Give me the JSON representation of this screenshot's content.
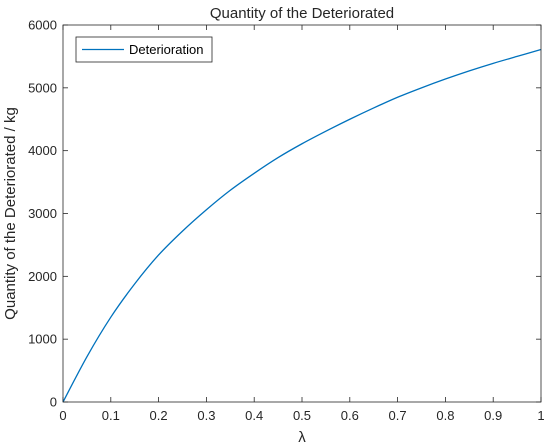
{
  "chart_data": {
    "type": "line",
    "title": "Quantity of the Deteriorated",
    "xlabel": "λ",
    "ylabel": "Quantity of the Deteriorated / kg",
    "xlim": [
      0,
      1
    ],
    "ylim": [
      0,
      6000
    ],
    "xticks": [
      0,
      0.1,
      0.2,
      0.3,
      0.4,
      0.5,
      0.6,
      0.7,
      0.8,
      0.9,
      1
    ],
    "xtick_labels": [
      "0",
      "0.1",
      "0.2",
      "0.3",
      "0.4",
      "0.5",
      "0.6",
      "0.7",
      "0.8",
      "0.9",
      "1"
    ],
    "yticks": [
      0,
      1000,
      2000,
      3000,
      4000,
      5000,
      6000
    ],
    "ytick_labels": [
      "0",
      "1000",
      "2000",
      "3000",
      "4000",
      "5000",
      "6000"
    ],
    "grid": false,
    "legend_position": "top-left",
    "series": [
      {
        "name": "Deterioration",
        "color": "#0072BD",
        "x": [
          0,
          0.05,
          0.1,
          0.15,
          0.2,
          0.25,
          0.3,
          0.35,
          0.4,
          0.45,
          0.5,
          0.55,
          0.6,
          0.65,
          0.7,
          0.75,
          0.8,
          0.85,
          0.9,
          0.95,
          1.0
        ],
        "y": [
          0,
          720,
          1350,
          1880,
          2340,
          2720,
          3060,
          3370,
          3640,
          3890,
          4110,
          4310,
          4500,
          4680,
          4850,
          5000,
          5140,
          5270,
          5390,
          5500,
          5610
        ]
      }
    ]
  }
}
